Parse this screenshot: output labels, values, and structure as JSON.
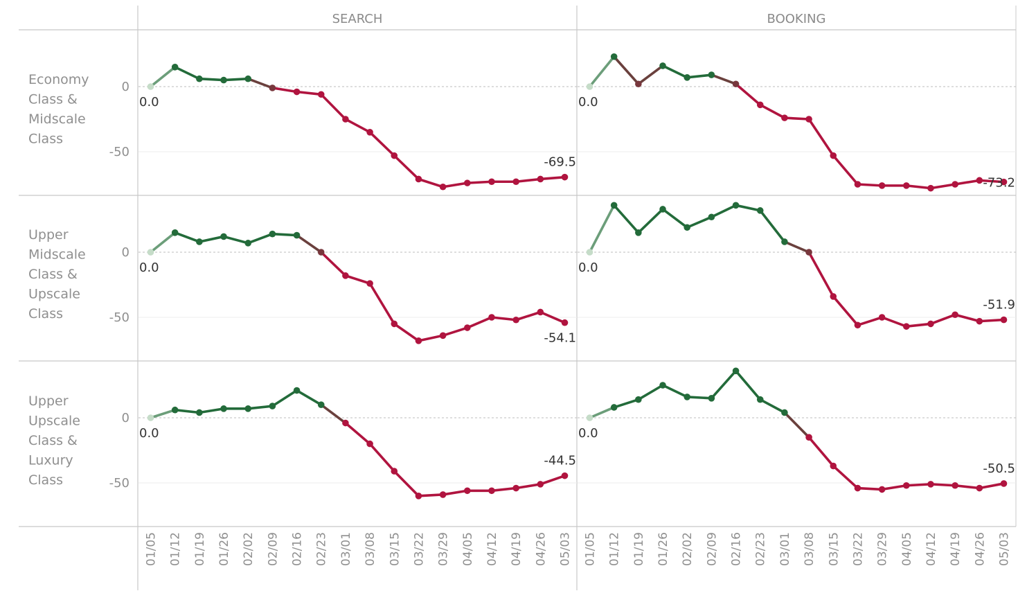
{
  "columns": [
    "SEARCH",
    "BOOKING"
  ],
  "colors": {
    "positive": "#236b3a",
    "negative": "#b0143f",
    "start": "#c5dcc8",
    "mid_red": "#d9333f",
    "axis": "#c8c8c8",
    "zero_line": "#bdbdbd",
    "grid": "#eeeeee"
  },
  "chart_data": {
    "type": "line",
    "x": [
      "01/05",
      "01/12",
      "01/19",
      "01/26",
      "02/02",
      "02/09",
      "02/16",
      "02/23",
      "03/01",
      "03/08",
      "03/15",
      "03/22",
      "03/29",
      "04/05",
      "04/12",
      "04/19",
      "04/26",
      "05/03"
    ],
    "y_ticks": [
      0,
      -50
    ],
    "ylim": [
      -85,
      45
    ],
    "grid": "horizontal",
    "panels": [
      {
        "row": "Economy Class & Midscale Class",
        "row_lines": [
          "Economy",
          "Class &",
          "Midscale",
          "Class"
        ],
        "column": "SEARCH",
        "values": [
          0.0,
          15,
          6,
          5,
          6,
          -1,
          -4,
          -6,
          -25,
          -35,
          -53,
          -71,
          -77,
          -74,
          -73,
          -73,
          -71,
          -69.5
        ],
        "start_label": "0.0",
        "end_label": "-69.5"
      },
      {
        "row": "Economy Class & Midscale Class",
        "column": "BOOKING",
        "values": [
          0.0,
          23,
          2,
          16,
          7,
          9,
          2,
          -14,
          -24,
          -25,
          -53,
          -75,
          -76,
          -76,
          -78,
          -75,
          -72,
          -73.2
        ],
        "start_label": "0.0",
        "end_label": "-73.2"
      },
      {
        "row": "Upper Midscale Class & Upscale Class",
        "row_lines": [
          "Upper",
          "Midscale",
          "Class &",
          "Upscale",
          "Class"
        ],
        "column": "SEARCH",
        "values": [
          0.0,
          15,
          8,
          12,
          7,
          14,
          13,
          0,
          -18,
          -24,
          -55,
          -68,
          -64,
          -58,
          -50,
          -52,
          -46,
          -54.1
        ],
        "start_label": "0.0",
        "end_label": "-54.1"
      },
      {
        "row": "Upper Midscale Class & Upscale Class",
        "column": "BOOKING",
        "values": [
          0.0,
          36,
          15,
          33,
          19,
          27,
          36,
          32,
          8,
          0,
          -34,
          -56,
          -50,
          -57,
          -55,
          -48,
          -53,
          -51.9
        ],
        "start_label": "0.0",
        "end_label": "-51.9"
      },
      {
        "row": "Upper Upscale Class & Luxury Class",
        "row_lines": [
          "Upper",
          "Upscale",
          "Class &",
          "Luxury",
          "Class"
        ],
        "column": "SEARCH",
        "values": [
          0.0,
          6,
          4,
          7,
          7,
          9,
          21,
          10,
          -4,
          -20,
          -41,
          -60,
          -59,
          -56,
          -56,
          -54,
          -51,
          -44.5
        ],
        "start_label": "0.0",
        "end_label": "-44.5"
      },
      {
        "row": "Upper Upscale Class & Luxury Class",
        "column": "BOOKING",
        "values": [
          0.0,
          8,
          14,
          25,
          16,
          15,
          36,
          14,
          4,
          -15,
          -37,
          -54,
          -55,
          -52,
          -51,
          -52,
          -54,
          -50.5
        ],
        "start_label": "0.0",
        "end_label": "-50.5"
      }
    ]
  }
}
